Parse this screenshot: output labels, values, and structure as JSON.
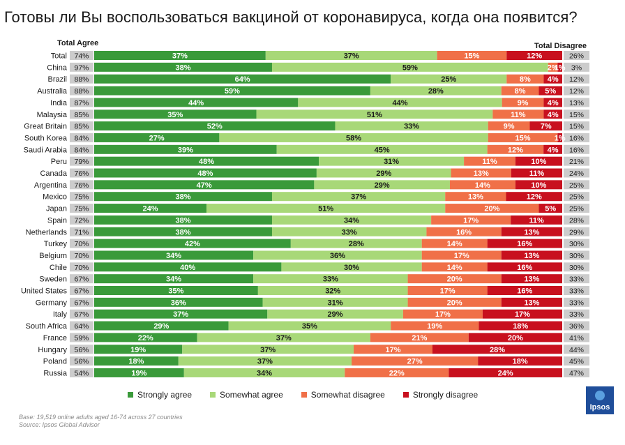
{
  "title": "Готовы ли Вы воспользоваться вакциной от коронавируса, когда она появится?",
  "total_agree_label": "Total Agree",
  "total_disagree_label": "Total Disagree",
  "footnote": {
    "base": "Base: 19,519 online adults aged 16-74 across 27 countries",
    "source": "Source: Ipsos Global Advisor"
  },
  "logo_text": "Ipsos",
  "colors": {
    "strongly_agree": "#3a9a3a",
    "somewhat_agree": "#a8d878",
    "somewhat_disagree": "#f07048",
    "strongly_disagree": "#c8101e",
    "total_box": "#cccccc"
  },
  "chart_data": {
    "type": "bar",
    "orientation": "horizontal-stacked-100",
    "categories": [
      "Total",
      "China",
      "Brazil",
      "Australia",
      "India",
      "Malaysia",
      "Great Britain",
      "South Korea",
      "Saudi Arabia",
      "Peru",
      "Canada",
      "Argentina",
      "Mexico",
      "Japan",
      "Spain",
      "Netherlands",
      "Turkey",
      "Belgium",
      "Chile",
      "Sweden",
      "United States",
      "Germany",
      "Italy",
      "South Africa",
      "France",
      "Hungary",
      "Poland",
      "Russia"
    ],
    "total_agree_labels": [
      "74%",
      "97%",
      "88%",
      "88%",
      "87%",
      "85%",
      "85%",
      "84%",
      "84%",
      "79%",
      "76%",
      "76%",
      "75%",
      "75%",
      "72%",
      "71%",
      "70%",
      "70%",
      "70%",
      "67%",
      "67%",
      "67%",
      "67%",
      "64%",
      "59%",
      "56%",
      "56%",
      "54%"
    ],
    "total_disagree_labels": [
      "26%",
      "3%",
      "12%",
      "12%",
      "13%",
      "15%",
      "15%",
      "16%",
      "16%",
      "21%",
      "24%",
      "25%",
      "25%",
      "25%",
      "28%",
      "29%",
      "30%",
      "30%",
      "30%",
      "33%",
      "33%",
      "33%",
      "33%",
      "36%",
      "41%",
      "44%",
      "45%",
      "47%"
    ],
    "series": [
      {
        "name": "Strongly agree",
        "values": [
          37,
          38,
          64,
          59,
          44,
          35,
          52,
          27,
          39,
          48,
          48,
          47,
          38,
          24,
          38,
          38,
          42,
          34,
          40,
          34,
          35,
          36,
          37,
          29,
          22,
          19,
          18,
          19
        ],
        "labels": [
          "37%",
          "38%",
          "64%",
          "59%",
          "44%",
          "35%",
          "52%",
          "27%",
          "39%",
          "48%",
          "48%",
          "47%",
          "38%",
          "24%",
          "38%",
          "38%",
          "42%",
          "34%",
          "40%",
          "34%",
          "35%",
          "36%",
          "37%",
          "29%",
          "22%",
          "19%",
          "18%",
          "19%"
        ]
      },
      {
        "name": "Somewhat agree",
        "values": [
          37,
          59,
          25,
          28,
          44,
          51,
          33,
          58,
          45,
          31,
          29,
          29,
          37,
          51,
          34,
          33,
          28,
          36,
          30,
          33,
          32,
          31,
          29,
          35,
          37,
          37,
          37,
          34
        ],
        "labels": [
          "37%",
          "59%",
          "25%",
          "28%",
          "44%",
          "51%",
          "33%",
          "58%",
          "45%",
          "31%",
          "29%",
          "29%",
          "37%",
          "51%",
          "34%",
          "33%",
          "28%",
          "36%",
          "30%",
          "33%",
          "32%",
          "31%",
          "29%",
          "35%",
          "37%",
          "37%",
          "37%",
          "34%"
        ]
      },
      {
        "name": "Somewhat disagree",
        "values": [
          15,
          2,
          8,
          8,
          9,
          11,
          9,
          15,
          12,
          11,
          13,
          14,
          13,
          20,
          17,
          16,
          14,
          17,
          14,
          20,
          17,
          20,
          17,
          19,
          21,
          17,
          27,
          22
        ],
        "labels": [
          "15%",
          "2%",
          "8%",
          "8%",
          "9%",
          "11%",
          "9%",
          "15%",
          "12%",
          "11%",
          "13%",
          "14%",
          "13%",
          "20%",
          "17%",
          "16%",
          "14%",
          "17%",
          "14%",
          "20%",
          "17%",
          "20%",
          "17%",
          "19%",
          "21%",
          "17%",
          "27%",
          "22%"
        ]
      },
      {
        "name": "Strongly disagree",
        "values": [
          12,
          1,
          4,
          5,
          4,
          4,
          7,
          1,
          4,
          10,
          11,
          10,
          12,
          5,
          11,
          13,
          16,
          13,
          16,
          13,
          16,
          13,
          17,
          18,
          20,
          28,
          18,
          24
        ],
        "labels": [
          "12%",
          "1%",
          "4%",
          "5%",
          "4%",
          "4%",
          "7%",
          "1%",
          "4%",
          "10%",
          "11%",
          "10%",
          "12%",
          "5%",
          "11%",
          "13%",
          "16%",
          "13%",
          "16%",
          "13%",
          "16%",
          "13%",
          "17%",
          "18%",
          "20%",
          "28%",
          "18%",
          "24%"
        ]
      }
    ],
    "xlim": [
      0,
      100
    ],
    "legend_position": "bottom"
  }
}
